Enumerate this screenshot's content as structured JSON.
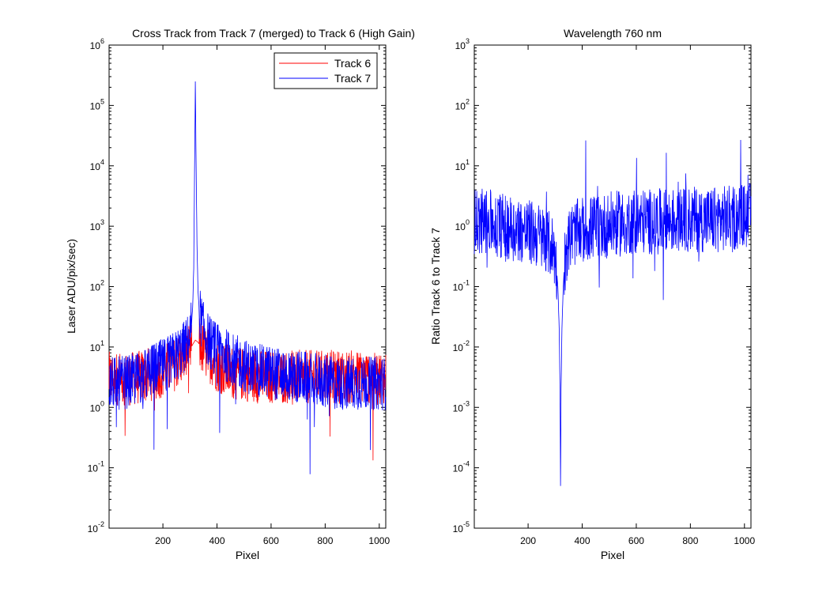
{
  "chart_data": [
    {
      "type": "line",
      "title": "Cross Track from Track 7 (merged) to Track 6 (High Gain)",
      "xlabel": "Pixel",
      "ylabel": "Laser ADU/pix/sec)",
      "xlim": [
        1,
        1024
      ],
      "ylim": [
        0.01,
        1000000
      ],
      "yscale": "log",
      "x_ticks": [
        200,
        400,
        600,
        800,
        1000
      ],
      "y_tick_exponents": [
        -2,
        -1,
        0,
        1,
        2,
        3,
        4,
        5,
        6
      ],
      "legend_position": "top-right",
      "grid": false,
      "series": [
        {
          "name": "Track 6",
          "color": "#ff0000",
          "x": [
            1,
            20,
            40,
            60,
            80,
            100,
            120,
            140,
            160,
            180,
            200,
            220,
            240,
            260,
            280,
            300,
            310,
            320,
            330,
            340,
            360,
            380,
            400,
            420,
            440,
            460,
            480,
            500,
            520,
            540,
            560,
            580,
            600,
            620,
            640,
            660,
            680,
            700,
            720,
            740,
            760,
            780,
            800,
            820,
            840,
            860,
            880,
            900,
            920,
            940,
            960,
            980,
            1000,
            1024
          ],
          "values": [
            3,
            3,
            3,
            3,
            3,
            3,
            3.2,
            3.4,
            3.6,
            3.8,
            4,
            4.5,
            5,
            6,
            7,
            9,
            11,
            13,
            12,
            10,
            8,
            6.5,
            5,
            4.5,
            4,
            3.8,
            3.6,
            3.5,
            3.4,
            3.3,
            3.2,
            3.2,
            3.2,
            3.2,
            3.2,
            3.2,
            3.2,
            3.2,
            3.2,
            3.2,
            3.2,
            3.2,
            3.2,
            3.2,
            3.2,
            3.2,
            3.2,
            3.2,
            3.2,
            3.2,
            3.2,
            3.2,
            3.2,
            3.2
          ]
        },
        {
          "name": "Track 7",
          "color": "#0000ff",
          "x": [
            1,
            20,
            40,
            60,
            80,
            100,
            120,
            140,
            160,
            180,
            200,
            220,
            240,
            260,
            280,
            290,
            300,
            306,
            310,
            314,
            317,
            320,
            323,
            326,
            330,
            335,
            340,
            350,
            360,
            380,
            400,
            420,
            440,
            460,
            480,
            500,
            520,
            540,
            560,
            580,
            600,
            620,
            640,
            660,
            680,
            700,
            720,
            740,
            760,
            780,
            800,
            820,
            840,
            860,
            880,
            900,
            920,
            940,
            960,
            980,
            1000,
            1024
          ],
          "values": [
            2.5,
            2.5,
            2.5,
            2.6,
            2.7,
            3,
            3.2,
            3.5,
            4,
            4.5,
            5,
            5.5,
            6.5,
            8,
            10,
            12,
            15,
            25,
            45,
            200,
            8000,
            250000,
            8000,
            500,
            80,
            40,
            30,
            20,
            15,
            11,
            9,
            8,
            7,
            6,
            5.5,
            5,
            4.5,
            4.2,
            4,
            4,
            3.8,
            3.6,
            3.5,
            3.4,
            3.3,
            3.2,
            3.1,
            3,
            2.9,
            2.8,
            2.7,
            2.6,
            2.5,
            2.5,
            2.5,
            2.5,
            2.5,
            2.5,
            2.5,
            2.5,
            2.5,
            2.5
          ]
        }
      ]
    },
    {
      "type": "line",
      "title": "Wavelength 760 nm",
      "xlabel": "Pixel",
      "ylabel": "Ratio Track 6 to Track 7",
      "xlim": [
        1,
        1024
      ],
      "ylim": [
        1e-05,
        1000
      ],
      "yscale": "log",
      "x_ticks": [
        200,
        400,
        600,
        800,
        1000
      ],
      "y_tick_exponents": [
        -5,
        -4,
        -3,
        -2,
        -1,
        0,
        1,
        2,
        3
      ],
      "grid": false,
      "series": [
        {
          "name": "",
          "color": "#0000ff",
          "x": [
            1,
            20,
            40,
            60,
            80,
            100,
            120,
            140,
            160,
            180,
            200,
            220,
            240,
            260,
            270,
            280,
            290,
            295,
            300,
            305,
            310,
            315,
            318,
            320,
            322,
            325,
            330,
            335,
            340,
            350,
            360,
            380,
            400,
            420,
            440,
            460,
            480,
            500,
            520,
            540,
            560,
            580,
            600,
            620,
            640,
            660,
            680,
            700,
            720,
            740,
            760,
            780,
            800,
            820,
            840,
            860,
            880,
            900,
            920,
            940,
            960,
            980,
            1000,
            1024
          ],
          "values": [
            1.2,
            1.2,
            1.2,
            1.15,
            1.1,
            1.05,
            1,
            0.95,
            0.9,
            0.85,
            0.8,
            0.75,
            0.7,
            0.6,
            0.55,
            0.5,
            0.45,
            0.4,
            0.3,
            0.2,
            0.1,
            0.02,
            0.002,
            5e-05,
            0.002,
            0.02,
            0.1,
            0.25,
            0.4,
            0.55,
            0.7,
            0.8,
            0.85,
            0.9,
            0.95,
            1,
            1,
            1.05,
            1.1,
            1.1,
            1.15,
            1.2,
            1.2,
            1.2,
            1.2,
            1.2,
            1.2,
            1.2,
            1.2,
            1.25,
            1.25,
            1.25,
            1.3,
            1.3,
            1.3,
            1.3,
            1.3,
            1.3,
            1.35,
            1.35,
            1.4,
            1.4,
            1.5,
            1.5
          ]
        }
      ]
    }
  ]
}
